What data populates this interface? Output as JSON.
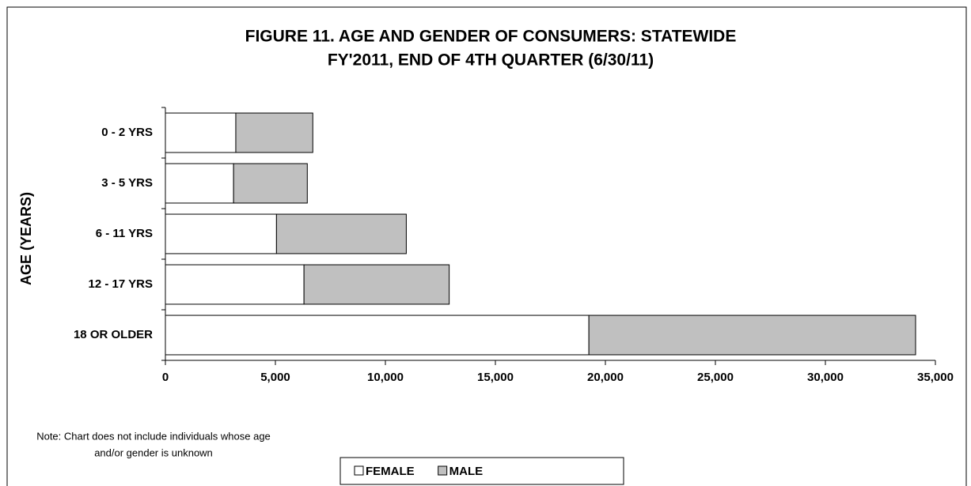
{
  "chart_data": {
    "type": "stacked-barh",
    "title": "FIGURE 11. AGE AND GENDER OF CONSUMERS: STATEWIDE",
    "subtitle": "FY'2011, END OF 4TH QUARTER (6/30/11)",
    "y_label": "AGE (YEARS)",
    "note": [
      "Note: Chart does not include individuals whose age",
      "and/or gender is unknown"
    ],
    "categories": [
      "0 - 2 YRS",
      "3 - 5 YRS",
      "6 - 11 YRS",
      "12 - 17 YRS",
      "18 OR OLDER"
    ],
    "series": [
      {
        "name": "FEMALE",
        "color": "#ffffff",
        "values": [
          3200,
          3100,
          5050,
          6300,
          19250
        ]
      },
      {
        "name": "MALE",
        "color": "#c0c0c0",
        "values": [
          3500,
          3350,
          5900,
          6600,
          14850
        ]
      }
    ],
    "xlim": [
      0,
      35000
    ],
    "xticks": [
      0,
      {
        "value": 5000,
        "label": "5,000"
      },
      {
        "value": 10000,
        "label": "10,000"
      },
      {
        "value": 15000,
        "label": "15,000"
      },
      {
        "value": 20000,
        "label": "20,000"
      },
      {
        "value": 25000,
        "label": "25,000"
      },
      {
        "value": 30000,
        "label": "30,000"
      },
      {
        "value": 35000,
        "label": "35,000"
      }
    ],
    "legend": "bottom"
  }
}
